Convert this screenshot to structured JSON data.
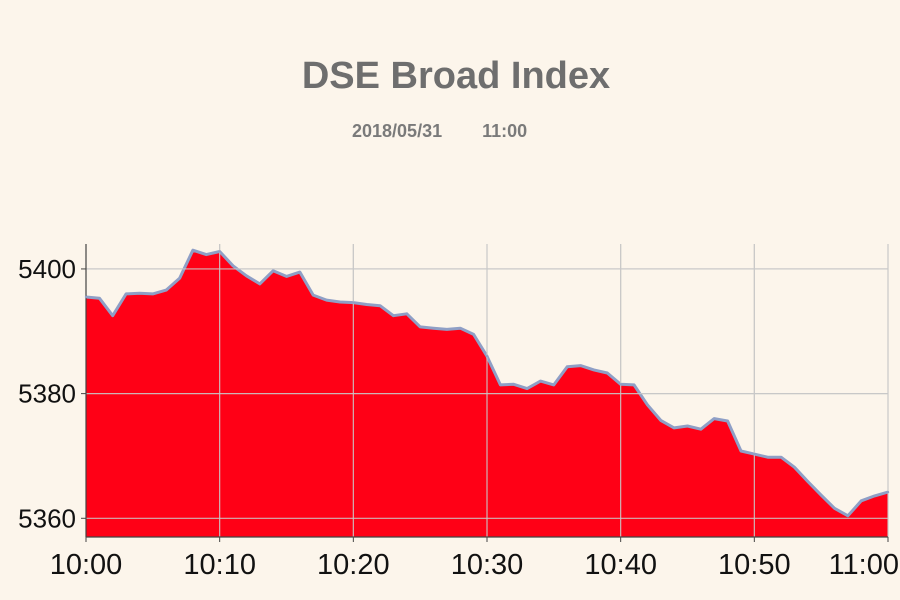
{
  "chart_data": {
    "type": "area",
    "title": "DSE Broad Index",
    "subtitle_date": "2018/05/31",
    "subtitle_time": "11:00",
    "xlabel": "",
    "ylabel": "",
    "x_ticks": [
      "10:00",
      "10:10",
      "10:20",
      "10:30",
      "10:40",
      "10:50",
      "11:00"
    ],
    "y_ticks": [
      5360,
      5380,
      5400
    ],
    "xlim_minutes": [
      0,
      60
    ],
    "ylim": [
      5357,
      5404
    ],
    "grid": true,
    "colors": {
      "fill": "#ff0016",
      "line": "#8f9fc6",
      "grid": "#bfbfbf",
      "background": "#fcf5eb"
    },
    "series": [
      {
        "minutes": [
          0,
          1,
          2,
          3,
          4,
          5,
          6,
          7,
          8,
          9,
          10,
          11,
          12,
          13,
          14,
          15,
          16,
          17,
          18,
          19,
          20,
          21,
          22,
          23,
          24,
          25,
          26,
          27,
          28,
          29,
          30,
          31,
          32,
          33,
          34,
          35,
          36,
          37,
          38,
          39,
          40,
          41,
          42,
          43,
          44,
          45,
          46,
          47,
          48,
          49,
          50,
          51,
          52,
          53,
          54,
          55,
          56,
          57,
          58,
          59,
          60
        ],
        "values": [
          5395.5,
          5395.3,
          5392.5,
          5396,
          5396.1,
          5396,
          5396.6,
          5398.5,
          5403,
          5402.3,
          5402.8,
          5400.5,
          5398.9,
          5397.6,
          5399.7,
          5398.8,
          5399.5,
          5395.8,
          5395,
          5394.7,
          5394.6,
          5394.3,
          5394.1,
          5392.5,
          5392.8,
          5390.7,
          5390.5,
          5390.3,
          5390.5,
          5389.5,
          5386,
          5381.4,
          5381.5,
          5380.8,
          5382,
          5381.4,
          5384.3,
          5384.5,
          5383.8,
          5383.3,
          5381.5,
          5381.4,
          5378.2,
          5375.7,
          5374.5,
          5374.8,
          5374.3,
          5376,
          5375.6,
          5370.8,
          5370.3,
          5369.8,
          5369.8,
          5368.2,
          5365.9,
          5363.7,
          5361.6,
          5360.4,
          5362.8,
          5363.6,
          5364.2
        ]
      }
    ]
  }
}
